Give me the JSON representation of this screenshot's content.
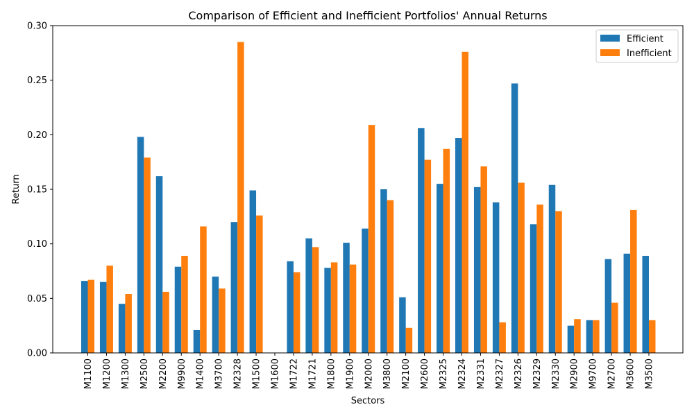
{
  "chart_data": {
    "type": "bar",
    "title": "Comparison of Efficient and Inefficient Portfolios' Annual Returns",
    "xlabel": "Sectors",
    "ylabel": "Return",
    "ylim": [
      0,
      0.3
    ],
    "yticks": [
      "0.00",
      "0.05",
      "0.10",
      "0.15",
      "0.20",
      "0.25",
      "0.30"
    ],
    "legend_position": "top-right",
    "grid": false,
    "categories": [
      "M1100",
      "M1200",
      "M1300",
      "M2500",
      "M2200",
      "M9900",
      "M1400",
      "M3700",
      "M2328",
      "M1500",
      "M1600",
      "M1722",
      "M1721",
      "M1800",
      "M1900",
      "M2000",
      "M3800",
      "M2100",
      "M2600",
      "M2325",
      "M2324",
      "M2331",
      "M2327",
      "M2326",
      "M2329",
      "M2330",
      "M2900",
      "M9700",
      "M2700",
      "M3600",
      "M3500"
    ],
    "series": [
      {
        "name": "Efficient",
        "color": "#1f77b4",
        "values": [
          0.066,
          0.065,
          0.045,
          0.198,
          0.162,
          0.079,
          0.021,
          0.07,
          0.12,
          0.149,
          0.0,
          0.084,
          0.105,
          0.078,
          0.101,
          0.114,
          0.15,
          0.051,
          0.206,
          0.155,
          0.197,
          0.152,
          0.138,
          0.247,
          0.118,
          0.154,
          0.025,
          0.03,
          0.086,
          0.091,
          0.089
        ]
      },
      {
        "name": "Inefficient",
        "color": "#ff7f0e",
        "values": [
          0.067,
          0.08,
          0.054,
          0.179,
          0.056,
          0.089,
          0.116,
          0.059,
          0.285,
          0.126,
          0.0,
          0.074,
          0.097,
          0.083,
          0.081,
          0.209,
          0.14,
          0.023,
          0.177,
          0.187,
          0.276,
          0.171,
          0.028,
          0.156,
          0.136,
          0.13,
          0.031,
          0.03,
          0.046,
          0.131,
          0.03
        ]
      }
    ]
  }
}
